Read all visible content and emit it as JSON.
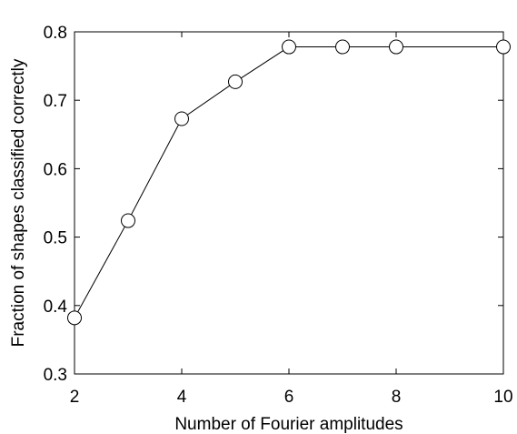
{
  "chart_data": {
    "type": "line",
    "title": "",
    "xlabel": "Number of Fourier amplitudes",
    "ylabel": "Fraction of shapes classified correctly",
    "xlim": [
      2,
      10
    ],
    "ylim": [
      0.3,
      0.8
    ],
    "x_ticks": [
      2,
      4,
      6,
      8,
      10
    ],
    "x_tick_labels": [
      "2",
      "4",
      "6",
      "8",
      "10"
    ],
    "y_ticks": [
      0.3,
      0.4,
      0.5,
      0.6,
      0.7,
      0.8
    ],
    "y_tick_labels": [
      "0.3",
      "0.4",
      "0.5",
      "0.6",
      "0.7",
      "0.8"
    ],
    "grid": false,
    "legend": "none",
    "series": [
      {
        "marker": "open-circle",
        "color": "#000000",
        "x": [
          2,
          3,
          4,
          5,
          6,
          7,
          8,
          10
        ],
        "y": [
          0.382,
          0.524,
          0.673,
          0.727,
          0.778,
          0.778,
          0.778,
          0.778
        ]
      }
    ]
  }
}
